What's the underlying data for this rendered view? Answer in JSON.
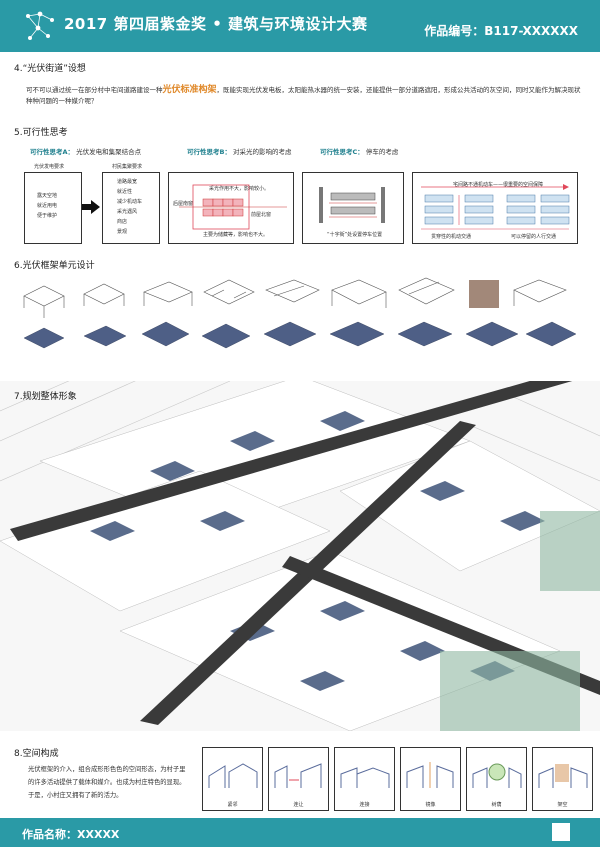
{
  "header": {
    "title": "2017 第四届紫金奖 • 建筑与环境设计大赛",
    "code": "作品编号：B117-XXXXXX"
  },
  "section4": {
    "title": "4.“光伏街道”设想",
    "text_before": "可不可以通过统一在部分村中宅间道路建设一种",
    "highlight": "光伏标准构架",
    "text_after": "，既能实现光伏发电板，太阳能热水器的统一安装，还能提供一部分道路遮阳，形成公共活动的灰空间，同时又能作为解决现状种种问题的一种媒介呢？"
  },
  "section5": {
    "title": "5.可行性思考",
    "thinkA": {
      "label": "可行性思考A：",
      "desc": "光伏发电和集聚结合点"
    },
    "thinkB": {
      "label": "可行性思考B：",
      "desc": "对采光的影响的考虑"
    },
    "thinkC": {
      "label": "可行性思考C：",
      "desc": "停车的考虑"
    },
    "boxA1": {
      "title": "光伏发电要求",
      "items": [
        "露天空地",
        "就近用电",
        "便于维护"
      ]
    },
    "boxA2": {
      "title": "村民集聚要求",
      "items": [
        "道路最宽",
        "就近性",
        "减少机动车",
        "采光遇风",
        "商店",
        "景观"
      ]
    },
    "boxB": {
      "note1": "采光作用不大，影响较小。",
      "note2": "后屋南窗",
      "note3": "前屋北窗",
      "note4": "主要为储藏等，影响也不大。"
    },
    "boxC": {
      "note": "“十字街”处设置停车位置"
    },
    "boxD": {
      "note1": "宅间路不通机动车——很重要的空间保障",
      "note2": "贯穿性的机动交通",
      "note3": "可以停留的人行交通"
    }
  },
  "section6": {
    "title": "6.光伏框架单元设计"
  },
  "section7": {
    "title": "7.规划整体形象"
  },
  "section8": {
    "title": "8.空间构成",
    "text": "光伏框架的介入，组合成形形色色的空间形态，为村子里的许多活动提供了载体和媒介。也成为村庄特色的显现。于是，小村庄又拥有了新的活力。",
    "panels": [
      "紧邻",
      "连让",
      "连接",
      "镜像",
      "树荫",
      "架空"
    ]
  },
  "footer": {
    "name": "作品名称：XXXXX"
  }
}
